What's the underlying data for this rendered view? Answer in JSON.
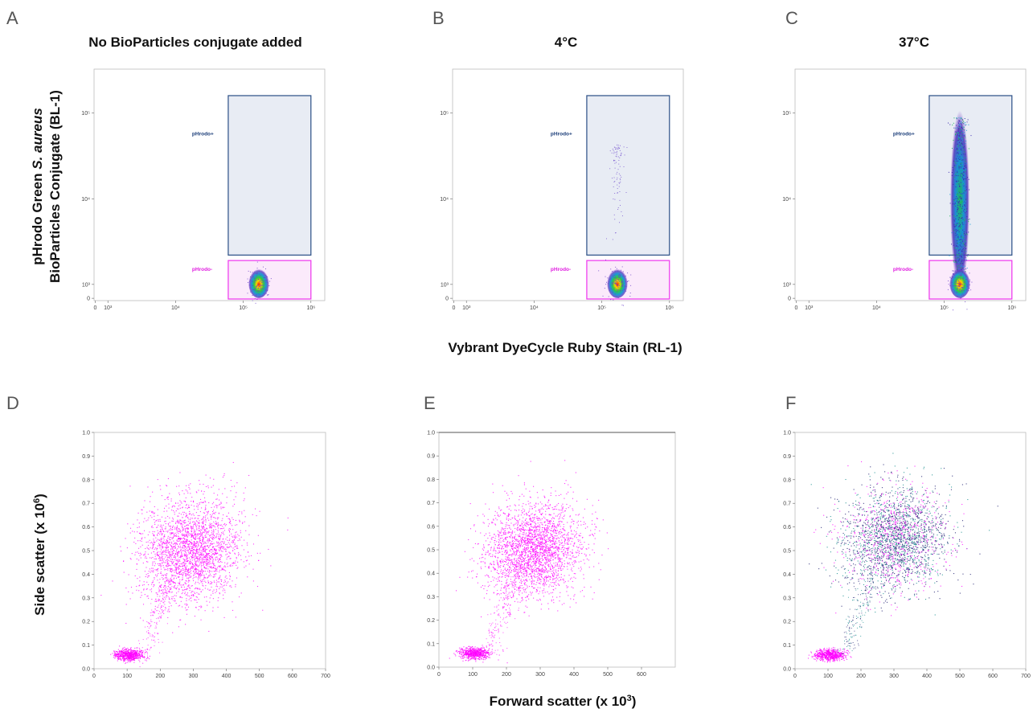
{
  "colors": {
    "gate_positive_stroke": "#2b4f86",
    "gate_positive_fill": "#e8ecf4",
    "gate_positive_label": "#1d3f7a",
    "gate_negative_stroke": "#ee33ee",
    "gate_negative_label": "#e020e0",
    "scatter_magenta": "#ff00ff",
    "scatter_navy": "#1a1a6e",
    "scatter_teal": "#0e8a8a"
  },
  "shared_labels": {
    "top_xlabel": "Vybrant DyeCycle Ruby Stain (RL-1)",
    "top_ylabel_line1_prefix": "pHrodo Green ",
    "top_ylabel_line1_italic": "S. aureus",
    "top_ylabel_line2": "BioParticles Conjugate (BL-1)",
    "bottom_xlabel_base": "Forward scatter (x 10",
    "bottom_xlabel_exp": "3",
    "bottom_xlabel_close": ")",
    "bottom_ylabel_base": "Side scatter (x 10",
    "bottom_ylabel_exp": "6",
    "bottom_ylabel_close": ")"
  },
  "chart_data": [
    {
      "panel": "A",
      "type": "scatter",
      "title": "No BioParticles conjugate added",
      "x_scale": "biexponential",
      "y_scale": "biexponential",
      "x_ticks": [
        "0",
        "10³",
        "10⁴",
        "10⁵",
        "10⁶"
      ],
      "y_ticks": [
        "0",
        "10³",
        "10⁴",
        "10⁵"
      ],
      "gates": [
        {
          "label": "pHrodo+",
          "x_range": [
            60000,
            1000000
          ],
          "y_range": [
            2200,
            160000
          ]
        },
        {
          "label": "pHrodo-",
          "x_range": [
            60000,
            1000000
          ],
          "y_range": [
            0,
            1900
          ]
        }
      ],
      "populations": [
        {
          "center_x": 170000,
          "center_y": 1000,
          "extent": "compact",
          "color": "density"
        }
      ]
    },
    {
      "panel": "B",
      "type": "scatter",
      "title": "4°C",
      "x_scale": "biexponential",
      "y_scale": "biexponential",
      "x_ticks": [
        "0",
        "10³",
        "10⁴",
        "10⁵",
        "10⁶"
      ],
      "y_ticks": [
        "0",
        "10³",
        "10⁴",
        "10⁵"
      ],
      "gates": [
        {
          "label": "pHrodo+",
          "x_range": [
            60000,
            1000000
          ],
          "y_range": [
            2200,
            160000
          ]
        },
        {
          "label": "pHrodo-",
          "x_range": [
            60000,
            1000000
          ],
          "y_range": [
            0,
            1900
          ]
        }
      ],
      "populations": [
        {
          "center_x": 170000,
          "center_y": 1000,
          "extent": "compact with faint upward tail",
          "color": "density"
        }
      ]
    },
    {
      "panel": "C",
      "type": "scatter",
      "title": "37°C",
      "x_scale": "biexponential",
      "y_scale": "biexponential",
      "x_ticks": [
        "0",
        "10³",
        "10⁴",
        "10⁵",
        "10⁶"
      ],
      "y_ticks": [
        "0",
        "10³",
        "10⁴",
        "10⁵"
      ],
      "gates": [
        {
          "label": "pHrodo+",
          "x_range": [
            60000,
            1000000
          ],
          "y_range": [
            2200,
            160000
          ]
        },
        {
          "label": "pHrodo-",
          "x_range": [
            60000,
            1000000
          ],
          "y_range": [
            0,
            1900
          ]
        }
      ],
      "populations": [
        {
          "center_x": 170000,
          "center_y": 1000,
          "extent": "vertical streak up to ~10⁵",
          "color": "density"
        }
      ]
    },
    {
      "panel": "D",
      "type": "scatter",
      "title": "",
      "xlim": [
        0,
        700
      ],
      "ylim": [
        0,
        1.0
      ],
      "x_ticks": [
        0,
        100,
        200,
        300,
        400,
        500,
        600,
        700
      ],
      "y_ticks": [
        0.0,
        0.1,
        0.2,
        0.3,
        0.4,
        0.5,
        0.6,
        0.7,
        0.8,
        0.9,
        1.0
      ],
      "clusters": [
        {
          "center": [
            290,
            0.5
          ],
          "spread": [
            75,
            0.11
          ],
          "color": "magenta"
        },
        {
          "center": [
            105,
            0.06
          ],
          "spread": [
            22,
            0.012
          ],
          "color": "magenta"
        }
      ]
    },
    {
      "panel": "E",
      "type": "scatter",
      "title": "",
      "xlim": [
        0,
        700
      ],
      "ylim": [
        0,
        1.0
      ],
      "x_ticks": [
        0,
        100,
        200,
        300,
        400,
        500,
        600
      ],
      "y_ticks": [
        0.0,
        0.1,
        0.2,
        0.3,
        0.4,
        0.5,
        0.6,
        0.7,
        0.8,
        0.9,
        1.0
      ],
      "clusters": [
        {
          "center": [
            280,
            0.5
          ],
          "spread": [
            70,
            0.1
          ],
          "color": "magenta"
        },
        {
          "center": [
            105,
            0.06
          ],
          "spread": [
            22,
            0.012
          ],
          "color": "magenta"
        }
      ]
    },
    {
      "panel": "F",
      "type": "scatter",
      "title": "",
      "xlim": [
        0,
        700
      ],
      "ylim": [
        0,
        1.0
      ],
      "x_ticks": [
        0,
        100,
        200,
        300,
        400,
        500,
        600,
        700
      ],
      "y_ticks": [
        0.0,
        0.1,
        0.2,
        0.3,
        0.4,
        0.5,
        0.6,
        0.7,
        0.8,
        0.9,
        1.0
      ],
      "clusters": [
        {
          "center": [
            300,
            0.55
          ],
          "spread": [
            80,
            0.11
          ],
          "color": "mixed navy/teal/magenta"
        },
        {
          "center": [
            105,
            0.06
          ],
          "spread": [
            22,
            0.012
          ],
          "color": "magenta"
        }
      ]
    }
  ]
}
